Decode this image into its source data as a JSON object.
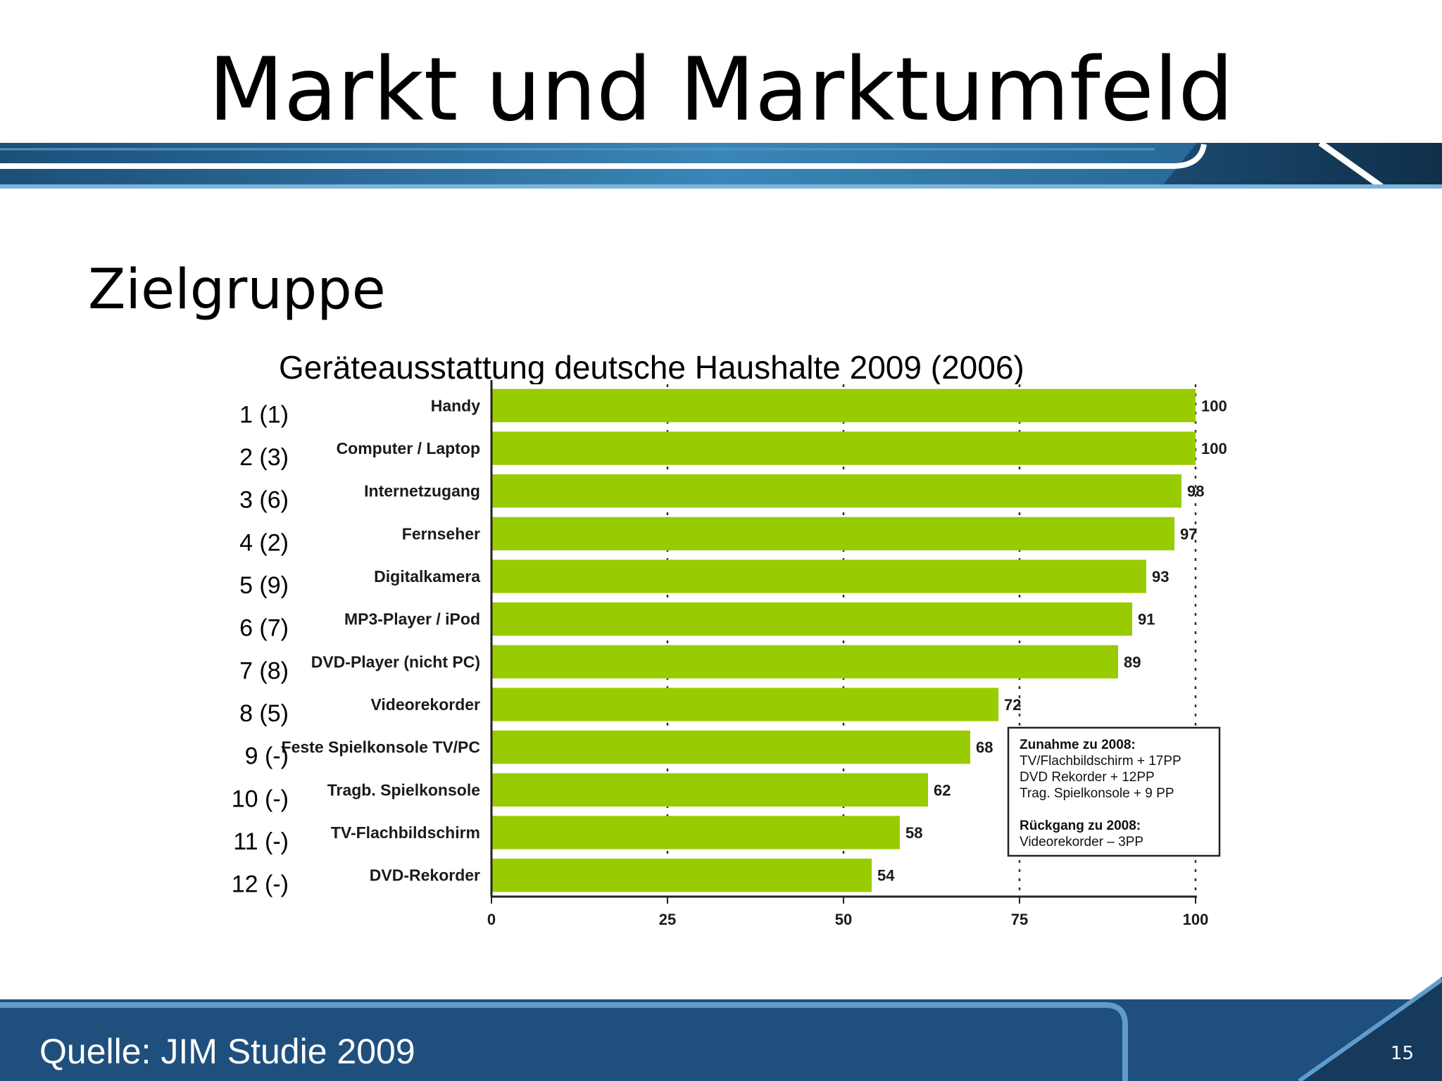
{
  "slide": {
    "title": "Markt und Marktumfeld",
    "subtitle": "Zielgruppe",
    "footer": "Quelle: JIM Studie 2009",
    "page_number": "15"
  },
  "colors": {
    "bar": "#99cc00",
    "header_band": "#2a6ea0",
    "footer_band": "#1f4f7c",
    "accent_dark": "#123650"
  },
  "chart_data": {
    "type": "bar",
    "orientation": "horizontal",
    "title": "Geräteausstattung deutsche Haushalte 2009 (2006)",
    "categories": [
      "Handy",
      "Computer / Laptop",
      "Internetzugang",
      "Fernseher",
      "Digitalkamera",
      "MP3-Player / iPod",
      "DVD-Player (nicht PC)",
      "Videorekorder",
      "Feste Spielkonsole TV/PC",
      "Tragb. Spielkonsole",
      "TV-Flachbildschirm",
      "DVD-Rekorder"
    ],
    "ranks": [
      "1 (1)",
      "2 (3)",
      "3 (6)",
      "4 (2)",
      "5 (9)",
      "6 (7)",
      "7 (8)",
      "8 (5)",
      "9 (-)",
      "10 (-)",
      "11 (-)",
      "12 (-)"
    ],
    "values": [
      100,
      100,
      98,
      97,
      93,
      91,
      89,
      72,
      68,
      62,
      58,
      54
    ],
    "xlim": [
      0,
      100
    ],
    "xticks": [
      0,
      25,
      50,
      75,
      100
    ],
    "grid": "vertical dashed",
    "annotation": {
      "increase_title": "Zunahme zu 2008:",
      "increase_lines": [
        "TV/Flachbildschirm + 17PP",
        "DVD Rekorder + 12PP",
        "Trag. Spielkonsole + 9 PP"
      ],
      "decrease_title": "Rückgang zu 2008:",
      "decrease_lines": [
        "Videorekorder – 3PP"
      ]
    }
  }
}
